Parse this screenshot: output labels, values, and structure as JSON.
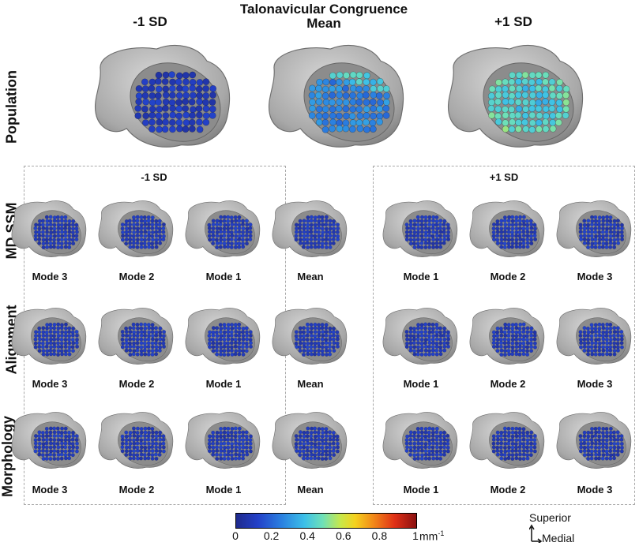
{
  "figure": {
    "title_line1": "Talonavicular Congruence",
    "col_minus": "-1 SD",
    "col_mean": "Mean",
    "col_plus": "+1 SD"
  },
  "rows": {
    "population": "Population",
    "md_ssm": "MD SSM",
    "alignment": "Alignment",
    "morphology": "Morphology"
  },
  "boxes": {
    "left": "-1 SD",
    "right": "+1 SD"
  },
  "mode_labels": [
    "Mode 3",
    "Mode 2",
    "Mode 1",
    "Mean",
    "Mode 1",
    "Mode 2",
    "Mode 3"
  ],
  "colorbar": {
    "ticks": [
      "0",
      "0.2",
      "0.4",
      "0.6",
      "0.8",
      "1"
    ],
    "unit": "mm",
    "unit_exp": "-1",
    "colormap": "jet",
    "range": [
      0,
      1
    ]
  },
  "orientation": {
    "superior": "Superior",
    "medial": "Medial"
  }
}
